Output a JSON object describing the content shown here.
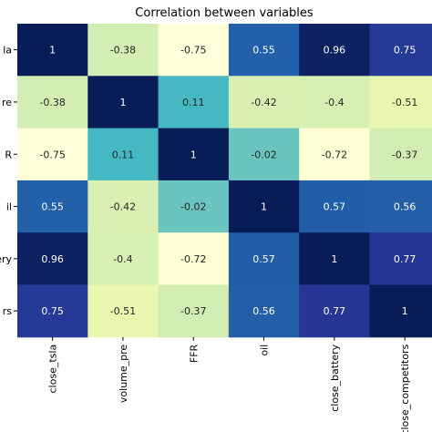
{
  "chart_data": {
    "type": "heatmap",
    "title": "Correlation between variables",
    "x_categories": [
      "close_tsla",
      "volume_pre",
      "FFR",
      "oil",
      "close_battery",
      "close_competitors"
    ],
    "y_tick_labels": [
      "la",
      "re",
      "R",
      "il",
      "ery",
      "rs"
    ],
    "values": [
      [
        1,
        -0.38,
        -0.75,
        0.55,
        0.96,
        0.75
      ],
      [
        -0.38,
        1,
        0.11,
        -0.42,
        -0.4,
        -0.51
      ],
      [
        -0.75,
        0.11,
        1,
        -0.02,
        -0.72,
        -0.37
      ],
      [
        0.55,
        -0.42,
        -0.02,
        1,
        0.57,
        0.56
      ],
      [
        0.96,
        -0.4,
        -0.72,
        0.57,
        1,
        0.77
      ],
      [
        0.75,
        -0.51,
        -0.37,
        0.56,
        0.77,
        1
      ]
    ],
    "value_labels": [
      [
        "1",
        "-0.38",
        "-0.75",
        "0.55",
        "0.96",
        "0.75"
      ],
      [
        "-0.38",
        "1",
        "0.11",
        "-0.42",
        "-0.4",
        "-0.51"
      ],
      [
        "-0.75",
        "0.11",
        "1",
        "-0.02",
        "-0.72",
        "-0.37"
      ],
      [
        "0.55",
        "-0.42",
        "-0.02",
        "1",
        "0.57",
        "0.56"
      ],
      [
        "0.96",
        "-0.4",
        "-0.72",
        "0.57",
        "1",
        "0.77"
      ],
      [
        "0.75",
        "-0.51",
        "-0.37",
        "0.56",
        "0.77",
        "1"
      ]
    ],
    "colormap": "YlGnBu",
    "value_range": [
      -0.75,
      1
    ],
    "annotated": true,
    "colorbar": false
  }
}
